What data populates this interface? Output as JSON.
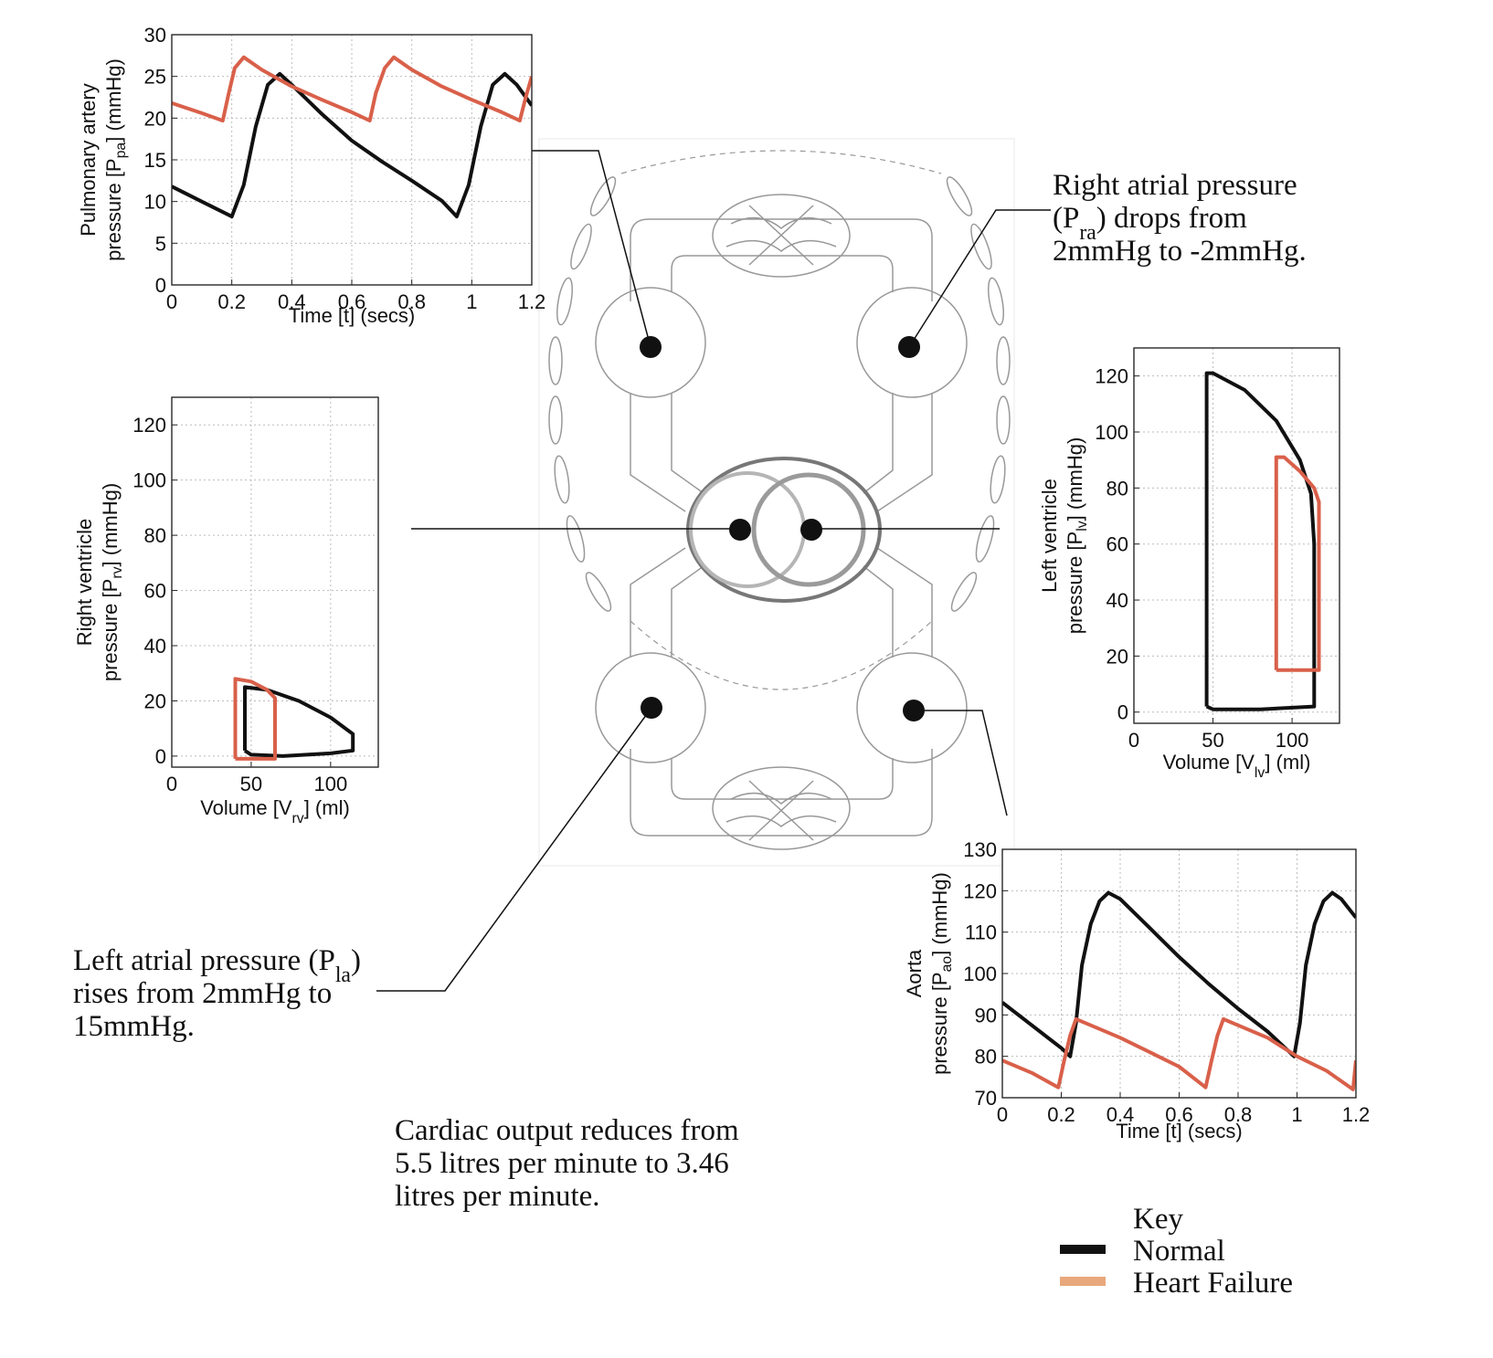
{
  "chart_data": [
    {
      "type": "line",
      "xlabel": [
        {
          "t": "Time [t] (secs)"
        }
      ],
      "ylabel": [
        [
          {
            "t": "Pulmonary artery"
          }
        ],
        [
          {
            "t": "pressure [P"
          },
          {
            "t": "pa",
            "sub": true
          },
          {
            "t": "] (mmHg)"
          }
        ]
      ],
      "xlim": [
        0,
        1.2
      ],
      "xticks": [
        0,
        0.2,
        0.4,
        0.6,
        0.8,
        1,
        1.2
      ],
      "ylim": [
        0,
        30
      ],
      "yticks": [
        0,
        5,
        10,
        15,
        20,
        25,
        30
      ],
      "grid": true,
      "series": [
        {
          "color": "#111111",
          "x": [
            0,
            0.1,
            0.2,
            0.24,
            0.28,
            0.32,
            0.36,
            0.4,
            0.5,
            0.6,
            0.7,
            0.8,
            0.9,
            0.95,
            0.99,
            1.03,
            1.07,
            1.11,
            1.15,
            1.2
          ],
          "values": [
            11.8,
            10,
            8.2,
            12,
            19,
            24,
            25.3,
            24,
            20.5,
            17.3,
            14.8,
            12.5,
            10.1,
            8.2,
            12,
            19,
            24,
            25.3,
            24,
            21.5
          ]
        },
        {
          "color": "#d9604a",
          "x": [
            0,
            0.1,
            0.17,
            0.19,
            0.21,
            0.24,
            0.3,
            0.4,
            0.5,
            0.6,
            0.66,
            0.68,
            0.71,
            0.74,
            0.8,
            0.9,
            1.0,
            1.1,
            1.16,
            1.18,
            1.2
          ],
          "values": [
            21.8,
            20.6,
            19.7,
            23,
            26,
            27.3,
            25.8,
            23.8,
            22.2,
            20.7,
            19.7,
            23,
            26,
            27.3,
            25.8,
            23.8,
            22.2,
            20.7,
            19.7,
            22.5,
            25
          ]
        }
      ]
    },
    {
      "type": "line",
      "xlabel": [
        {
          "t": "Volume [V"
        },
        {
          "t": "rv",
          "sub": true
        },
        {
          "t": "] (ml)"
        }
      ],
      "ylabel": [
        [
          {
            "t": "Right ventricle"
          }
        ],
        [
          {
            "t": "pressure [P"
          },
          {
            "t": "rv",
            "sub": true
          },
          {
            "t": "] (mmHg)"
          }
        ]
      ],
      "xlim": [
        0,
        130
      ],
      "xticks": [
        0,
        50,
        100
      ],
      "ylim": [
        -4,
        130
      ],
      "yticks": [
        0,
        20,
        40,
        60,
        80,
        100,
        120
      ],
      "grid": true,
      "series": [
        {
          "color": "#111111",
          "x": [
            46,
            46,
            60,
            80,
            100,
            114,
            114,
            100,
            70,
            50,
            46
          ],
          "values": [
            2,
            25,
            24,
            20,
            14,
            8,
            2,
            1,
            0,
            0.5,
            2
          ]
        },
        {
          "color": "#d9604a",
          "x": [
            40,
            40,
            50,
            60,
            65,
            65,
            40
          ],
          "values": [
            -1,
            28,
            27,
            24,
            21,
            -1,
            -1
          ]
        }
      ]
    },
    {
      "type": "line",
      "xlabel": [
        {
          "t": "Volume [V"
        },
        {
          "t": "lv",
          "sub": true
        },
        {
          "t": "] (ml)"
        }
      ],
      "ylabel": [
        [
          {
            "t": "Left ventricle"
          }
        ],
        [
          {
            "t": "pressure [P"
          },
          {
            "t": "lv",
            "sub": true
          },
          {
            "t": "] (mmHg)"
          }
        ]
      ],
      "xlim": [
        0,
        130
      ],
      "xticks": [
        0,
        50,
        100
      ],
      "ylim": [
        -4,
        130
      ],
      "yticks": [
        0,
        20,
        40,
        60,
        80,
        100,
        120
      ],
      "grid": true,
      "series": [
        {
          "color": "#111111",
          "x": [
            46,
            46,
            50,
            70,
            90,
            105,
            112,
            114,
            114,
            80,
            50,
            46
          ],
          "values": [
            2,
            121,
            121,
            115,
            104,
            90,
            78,
            60,
            2,
            1,
            1,
            2
          ]
        },
        {
          "color": "#d9604a",
          "x": [
            90,
            90,
            95,
            105,
            114,
            117,
            117,
            90
          ],
          "values": [
            15,
            91,
            91,
            86,
            80,
            75,
            15,
            15
          ]
        }
      ]
    },
    {
      "type": "line",
      "xlabel": [
        {
          "t": "Time [t] (secs)"
        }
      ],
      "ylabel": [
        [
          {
            "t": "Aorta"
          }
        ],
        [
          {
            "t": "pressure [P"
          },
          {
            "t": "ao",
            "sub": true
          },
          {
            "t": "] (mmHg)"
          }
        ]
      ],
      "xlim": [
        0,
        1.2
      ],
      "xticks": [
        0,
        0.2,
        0.4,
        0.6,
        0.8,
        1,
        1.2
      ],
      "ylim": [
        70,
        130
      ],
      "yticks": [
        70,
        80,
        90,
        100,
        110,
        120,
        130
      ],
      "grid": true,
      "series": [
        {
          "color": "#111111",
          "x": [
            0,
            0.1,
            0.2,
            0.23,
            0.25,
            0.27,
            0.3,
            0.33,
            0.36,
            0.4,
            0.5,
            0.6,
            0.7,
            0.8,
            0.9,
            0.99,
            1.01,
            1.03,
            1.06,
            1.09,
            1.12,
            1.15,
            1.2
          ],
          "values": [
            93,
            87.5,
            82,
            80,
            88,
            102,
            112,
            117.5,
            119.5,
            118,
            111,
            104,
            97.5,
            91.5,
            86,
            80,
            88,
            102,
            112,
            117.5,
            119.5,
            118,
            113.5
          ]
        },
        {
          "color": "#d9604a",
          "x": [
            0,
            0.1,
            0.19,
            0.21,
            0.23,
            0.25,
            0.3,
            0.4,
            0.5,
            0.6,
            0.69,
            0.71,
            0.73,
            0.75,
            0.8,
            0.9,
            1.0,
            1.1,
            1.19,
            1.2
          ],
          "values": [
            79,
            76,
            72.5,
            79,
            85,
            89,
            87.5,
            84.5,
            81,
            77.5,
            72.5,
            79,
            85,
            89,
            87.5,
            84.5,
            80,
            76.5,
            72,
            79
          ]
        }
      ]
    }
  ],
  "annotations": [
    {
      "lines": [
        [
          {
            "t": "Right atrial pressure"
          }
        ],
        [
          {
            "t": "(P"
          },
          {
            "t": "ra",
            "sub": true
          },
          {
            "t": ") drops from"
          }
        ],
        [
          {
            "t": "2mmHg to -2mmHg."
          }
        ]
      ]
    },
    {
      "lines": [
        [
          {
            "t": "Left atrial pressure (P"
          },
          {
            "t": "la",
            "sub": true
          },
          {
            "t": ")"
          }
        ],
        [
          {
            "t": "rises from 2mmHg to"
          }
        ],
        [
          {
            "t": "15mmHg."
          }
        ]
      ]
    },
    {
      "lines": [
        [
          {
            "t": "Cardiac output reduces from"
          }
        ],
        [
          {
            "t": "5.5 litres per minute to 3.46"
          }
        ],
        [
          {
            "t": "litres per minute."
          }
        ]
      ]
    }
  ],
  "key": {
    "title": "Key",
    "items": [
      {
        "name": "Normal",
        "color": "#111111"
      },
      {
        "name": "Heart Failure",
        "color": "#e8a87c"
      }
    ]
  }
}
